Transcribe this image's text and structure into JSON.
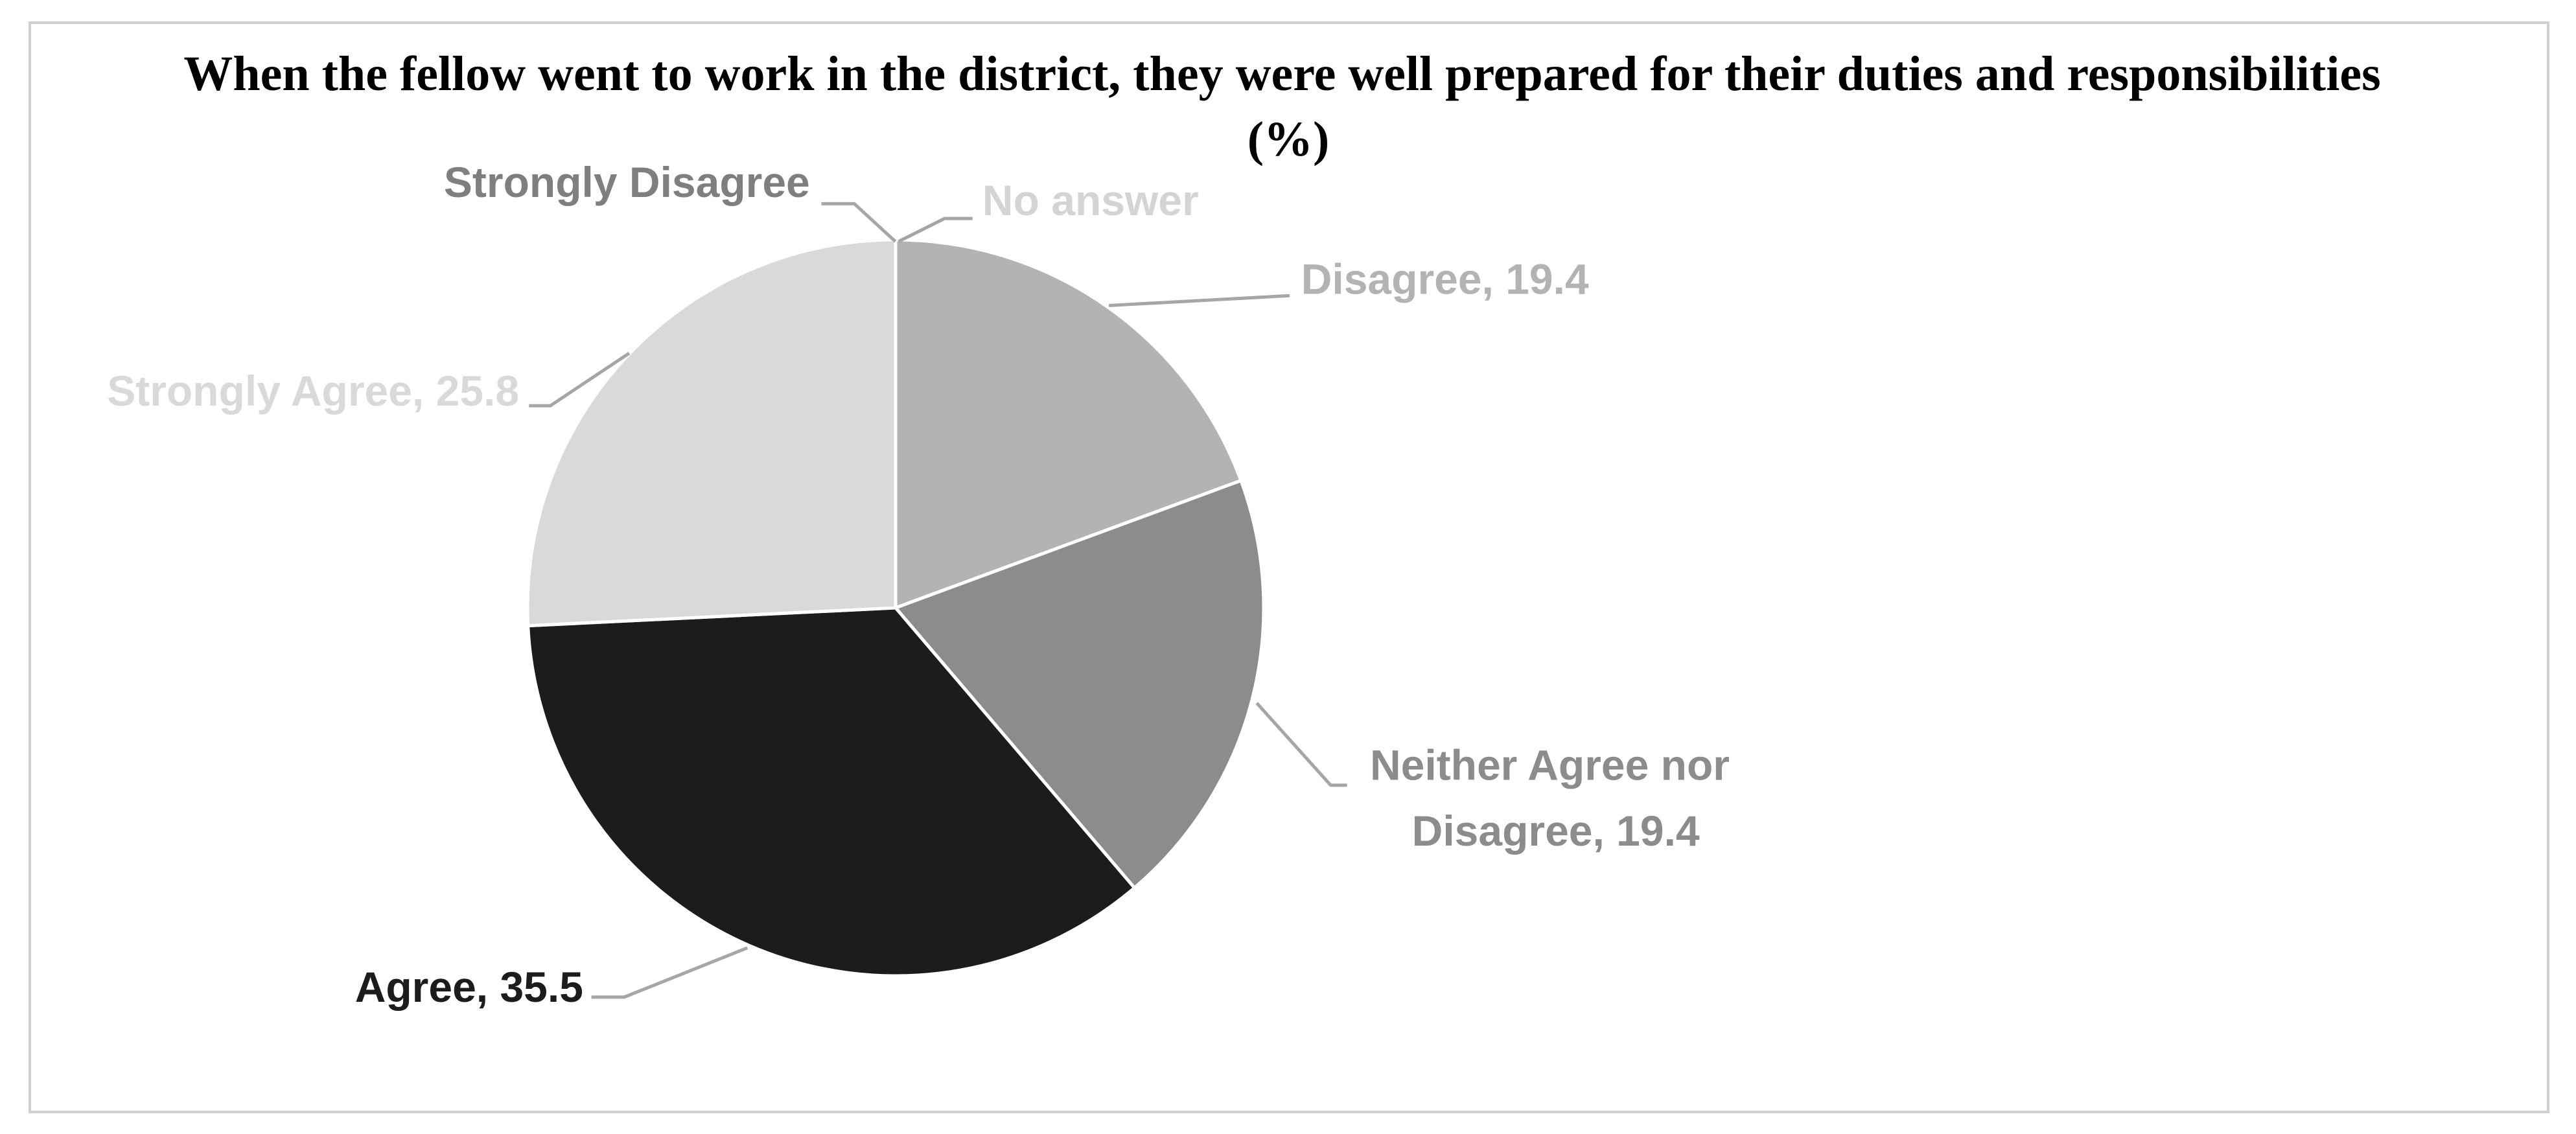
{
  "chart_data": {
    "type": "pie",
    "title": "When the fellow went to work in the district, they were well prepared for their duties and responsibilities (%)",
    "categories": [
      "No answer",
      "Disagree, 19.4",
      "Neither Agree nor Disagree, 19.4",
      "Agree, 35.5",
      "Strongly Agree, 25.8",
      "Strongly Disagree"
    ],
    "values": [
      0,
      19.4,
      19.4,
      35.5,
      25.8,
      0
    ],
    "colors": [
      "#d4d4d4",
      "#b3b3b3",
      "#8c8c8c",
      "#1c1c1c",
      "#d9d9d9",
      "#7f7f7f"
    ]
  }
}
